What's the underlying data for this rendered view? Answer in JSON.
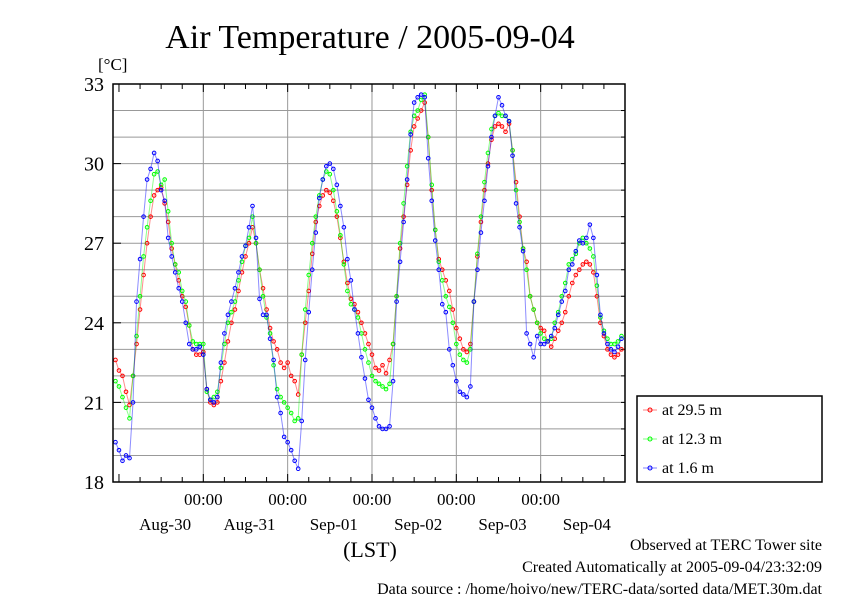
{
  "chart_data": {
    "type": "line",
    "title": "Air Temperature / 2005-09-04",
    "ylabel": "[°C]",
    "xlabel": "(LST)",
    "ylim": [
      18,
      33
    ],
    "yticks": [
      18,
      21,
      24,
      27,
      30,
      33
    ],
    "x_units": "hours since Aug-30 00:00 (LST)",
    "xlim": [
      -1.7,
      144
    ],
    "x_start": -1,
    "x_step": 1,
    "time_tick_label": "00:00",
    "time_ticks": [
      24,
      48,
      72,
      96,
      120
    ],
    "day_labels": [
      {
        "x": 12,
        "label": "Aug-30"
      },
      {
        "x": 36,
        "label": "Aug-31"
      },
      {
        "x": 60,
        "label": "Sep-01"
      },
      {
        "x": 84,
        "label": "Sep-02"
      },
      {
        "x": 108,
        "label": "Sep-03"
      },
      {
        "x": 132,
        "label": "Sep-04"
      }
    ],
    "grid": true,
    "legend_position": "right-bottom-outside",
    "series": [
      {
        "name": "at 29.5 m",
        "color": "#ff0000",
        "values": [
          22.6,
          22.2,
          22.0,
          21.4,
          20.9,
          22.0,
          23.2,
          24.5,
          25.8,
          27.0,
          28.0,
          28.8,
          29.0,
          29.1,
          28.5,
          27.8,
          26.8,
          26.2,
          25.6,
          25.0,
          24.6,
          23.9,
          23.0,
          22.8,
          22.8,
          22.9,
          21.5,
          21.0,
          20.9,
          21.0,
          21.8,
          22.5,
          23.3,
          24.0,
          24.5,
          25.2,
          25.9,
          26.5,
          27.0,
          27.6,
          27.0,
          26.0,
          25.3,
          24.5,
          23.8,
          23.3,
          23.0,
          22.5,
          22.3,
          22.5,
          22.0,
          21.8,
          21.3,
          22.8,
          24.0,
          25.2,
          26.6,
          27.8,
          28.4,
          28.8,
          29.0,
          28.9,
          28.6,
          28.0,
          27.2,
          26.3,
          25.5,
          24.9,
          24.7,
          24.4,
          24.0,
          23.6,
          23.2,
          22.8,
          22.3,
          22.2,
          22.4,
          22.1,
          22.6,
          23.2,
          25.0,
          26.8,
          28.0,
          29.2,
          30.5,
          31.4,
          31.7,
          32.0,
          32.3,
          31.0,
          29.0,
          27.5,
          26.4,
          26.0,
          25.6,
          25.2,
          24.5,
          23.8,
          23.4,
          23.0,
          22.9,
          23.2,
          24.8,
          26.5,
          27.8,
          29.0,
          30.0,
          30.9,
          31.4,
          31.5,
          31.4,
          31.2,
          31.5,
          30.5,
          29.3,
          28.0,
          26.8,
          26.3,
          25.0,
          24.5,
          24.0,
          23.8,
          23.7,
          23.3,
          23.1,
          23.4,
          23.7,
          24.0,
          24.4,
          25.0,
          25.5,
          25.8,
          26.0,
          26.2,
          26.3,
          26.2,
          25.9,
          25.0,
          24.0,
          23.5,
          23.0,
          22.8,
          22.7,
          22.8,
          23.0
        ]
      },
      {
        "name": "at 12.3 m",
        "color": "#00ff00",
        "values": [
          21.8,
          21.6,
          21.2,
          20.8,
          20.4,
          22.0,
          23.5,
          25.0,
          26.5,
          27.6,
          28.6,
          29.6,
          29.7,
          29.2,
          29.4,
          28.2,
          27.0,
          26.2,
          25.9,
          25.2,
          24.8,
          23.9,
          23.3,
          23.2,
          23.2,
          23.2,
          21.4,
          21.1,
          21.2,
          21.4,
          22.3,
          23.2,
          24.0,
          24.4,
          24.8,
          25.6,
          26.3,
          26.9,
          27.2,
          28.0,
          27.0,
          26.0,
          25.0,
          24.2,
          23.6,
          22.4,
          21.5,
          21.2,
          21.0,
          20.8,
          20.6,
          20.3,
          20.4,
          22.8,
          24.5,
          25.8,
          27.0,
          28.0,
          28.8,
          29.4,
          29.7,
          29.6,
          29.0,
          28.2,
          27.3,
          26.2,
          25.2,
          24.7,
          24.5,
          24.2,
          23.6,
          23.0,
          22.5,
          22.0,
          21.8,
          21.7,
          21.6,
          21.5,
          21.7,
          23.2,
          25.0,
          27.0,
          28.5,
          29.9,
          31.2,
          31.8,
          32.0,
          32.4,
          32.6,
          31.0,
          29.2,
          27.5,
          26.3,
          25.6,
          25.0,
          24.6,
          24.0,
          23.2,
          22.8,
          22.6,
          22.5,
          23.0,
          24.8,
          26.6,
          28.0,
          29.3,
          30.4,
          31.3,
          31.8,
          31.9,
          31.8,
          31.8,
          31.6,
          30.5,
          29.0,
          27.8,
          26.8,
          26.0,
          25.0,
          24.5,
          24.0,
          23.6,
          23.4,
          23.3,
          23.4,
          24.0,
          24.4,
          25.0,
          25.5,
          26.2,
          26.4,
          26.6,
          27.0,
          27.2,
          27.0,
          26.8,
          26.5,
          25.4,
          24.2,
          23.7,
          23.4,
          23.2,
          23.2,
          23.3,
          23.5
        ]
      },
      {
        "name": "at 1.6 m",
        "color": "#0000ff",
        "values": [
          19.5,
          19.2,
          18.8,
          19.0,
          18.9,
          21.0,
          24.8,
          26.4,
          28.0,
          29.4,
          29.8,
          30.4,
          30.1,
          29.0,
          28.6,
          27.2,
          26.5,
          25.9,
          25.3,
          24.8,
          24.0,
          23.2,
          23.0,
          23.0,
          23.1,
          22.8,
          21.5,
          21.1,
          21.0,
          21.2,
          22.5,
          23.6,
          24.3,
          24.8,
          25.3,
          25.9,
          26.5,
          26.9,
          27.6,
          28.4,
          27.2,
          24.9,
          24.3,
          24.3,
          23.4,
          22.6,
          21.2,
          20.6,
          19.7,
          19.5,
          19.2,
          18.8,
          18.5,
          20.3,
          22.6,
          24.4,
          26.0,
          27.4,
          28.7,
          29.4,
          29.9,
          30.0,
          29.8,
          29.2,
          28.4,
          27.6,
          26.4,
          25.6,
          24.5,
          23.6,
          22.7,
          21.9,
          21.1,
          20.8,
          20.4,
          20.1,
          20.0,
          20.0,
          20.1,
          21.8,
          24.8,
          26.3,
          27.8,
          29.4,
          31.1,
          32.3,
          32.5,
          32.6,
          32.5,
          30.2,
          28.6,
          27.1,
          26.0,
          24.7,
          24.4,
          23.0,
          22.4,
          21.8,
          21.4,
          21.3,
          21.2,
          21.6,
          24.8,
          26.0,
          27.4,
          28.6,
          29.9,
          31.0,
          31.8,
          32.5,
          32.2,
          31.8,
          31.6,
          30.3,
          28.5,
          27.6,
          26.7,
          23.6,
          23.2,
          22.7,
          23.5,
          23.2,
          23.2,
          23.3,
          23.5,
          23.8,
          24.3,
          24.8,
          25.2,
          26.0,
          26.2,
          26.7,
          27.1,
          27.0,
          27.2,
          27.7,
          27.2,
          25.8,
          24.3,
          23.6,
          23.2,
          23.0,
          22.9,
          23.1,
          23.4
        ]
      }
    ]
  },
  "footer": {
    "line1": "Observed at TERC Tower site",
    "line2": "Created Automatically at 2005-09-04/23:32:09",
    "line3": "Data source : /home/hoivo/new/TERC-data/sorted  data/MET.30m.dat"
  }
}
